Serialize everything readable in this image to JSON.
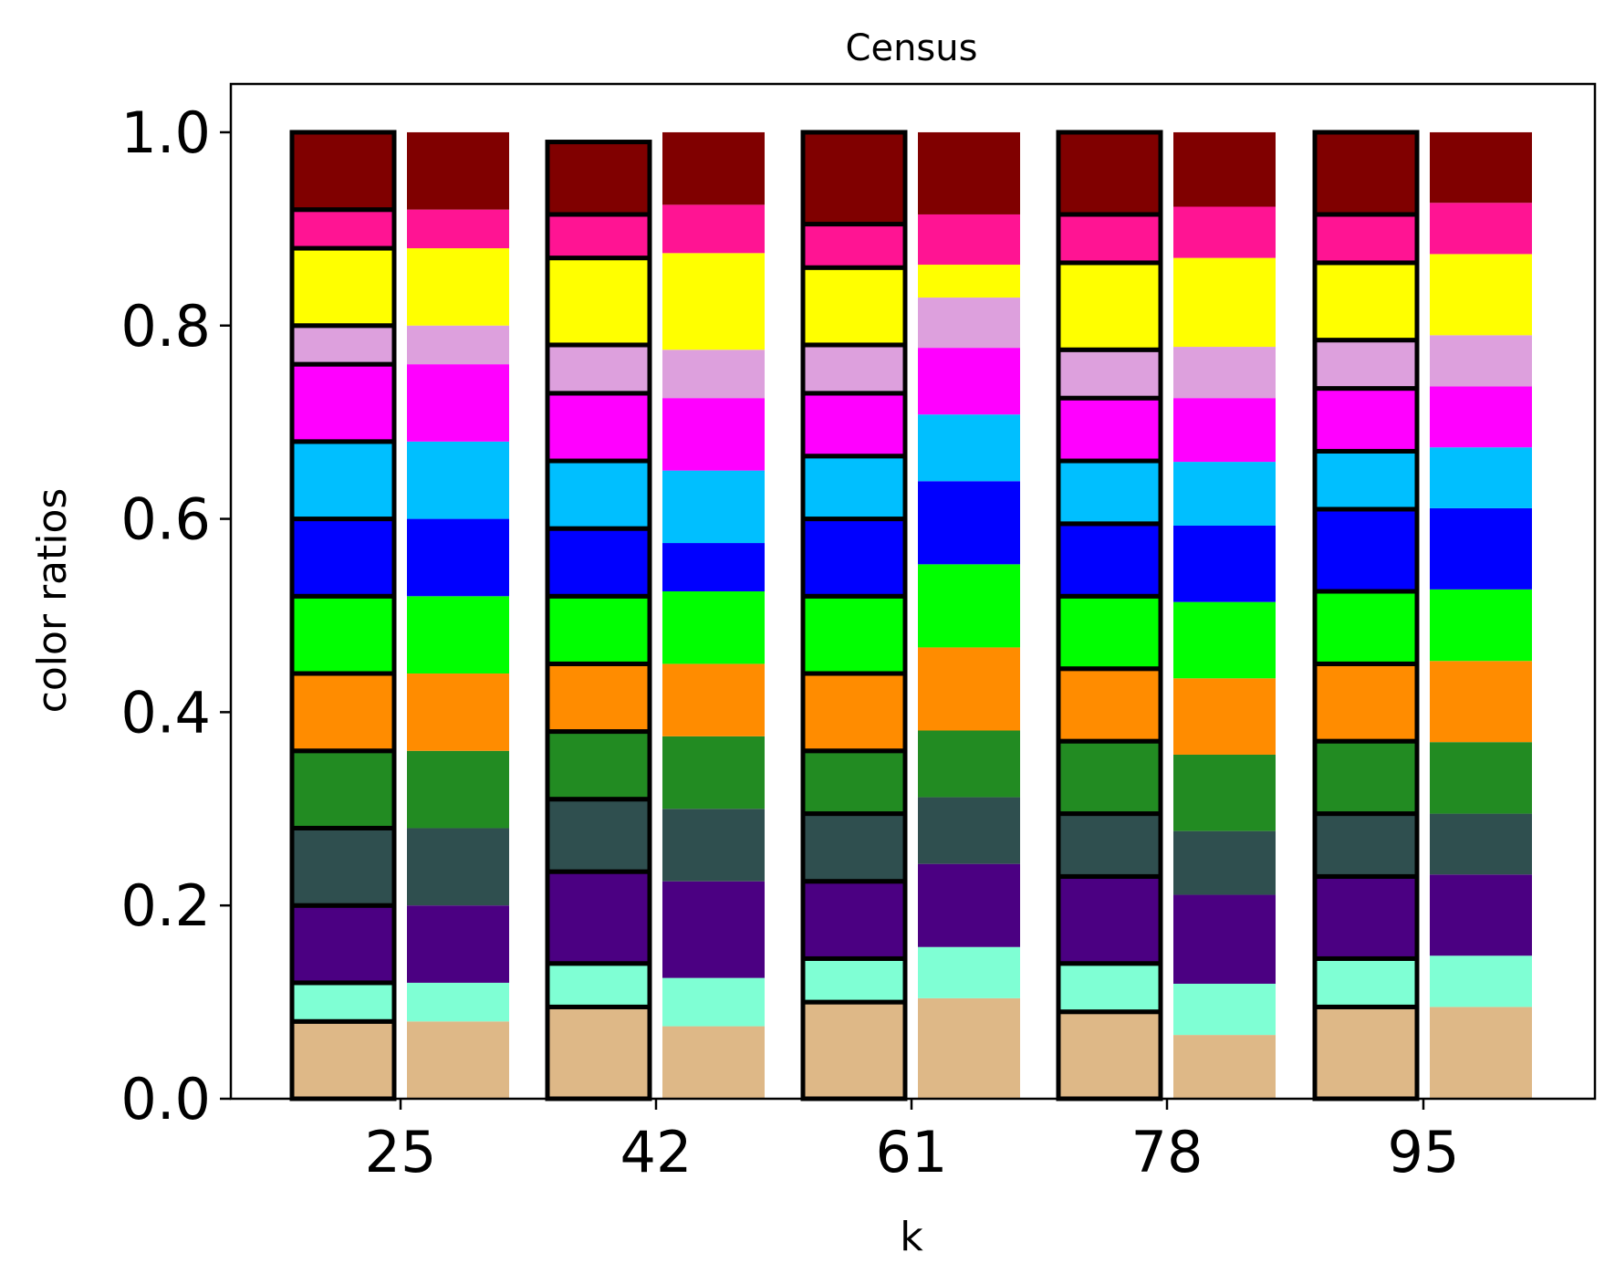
{
  "chart_data": {
    "type": "bar",
    "stacked": true,
    "title": "Census",
    "xlabel": "k",
    "ylabel": "color ratios",
    "ylim": [
      0,
      1.05
    ],
    "yticks": [
      "0.0",
      "0.2",
      "0.4",
      "0.6",
      "0.8",
      "1.0"
    ],
    "categories": [
      "25",
      "42",
      "61",
      "78",
      "95"
    ],
    "pair_note_outlined_bar_first": true,
    "segment_colors": [
      "#deb887",
      "#7fffd4",
      "#4b0082",
      "#2f4f4f",
      "#228b22",
      "#ff8c00",
      "#00ff00",
      "#0000ff",
      "#00bfff",
      "#ff00ff",
      "#dda0dd",
      "#ffff00",
      "#ff1493",
      "#800000"
    ],
    "groups": [
      {
        "k": "25",
        "outlined": [
          0.08,
          0.04,
          0.08,
          0.08,
          0.08,
          0.08,
          0.08,
          0.08,
          0.08,
          0.08,
          0.04,
          0.08,
          0.04,
          0.08
        ],
        "plain": [
          0.08,
          0.04,
          0.08,
          0.08,
          0.08,
          0.08,
          0.08,
          0.08,
          0.08,
          0.08,
          0.04,
          0.08,
          0.04,
          0.08
        ]
      },
      {
        "k": "42",
        "outlined": [
          0.095,
          0.045,
          0.095,
          0.075,
          0.07,
          0.07,
          0.07,
          0.07,
          0.07,
          0.07,
          0.05,
          0.09,
          0.045,
          0.075
        ],
        "plain": [
          0.075,
          0.05,
          0.1,
          0.075,
          0.075,
          0.075,
          0.075,
          0.05,
          0.075,
          0.075,
          0.05,
          0.1,
          0.05,
          0.075
        ]
      },
      {
        "k": "61",
        "outlined": [
          0.1,
          0.045,
          0.08,
          0.07,
          0.065,
          0.08,
          0.08,
          0.08,
          0.065,
          0.065,
          0.05,
          0.08,
          0.045,
          0.095
        ],
        "plain": [
          0.104,
          0.053,
          0.086,
          0.069,
          0.069,
          0.086,
          0.086,
          0.086,
          0.069,
          0.069,
          0.052,
          0.034,
          0.052,
          0.085
        ]
      },
      {
        "k": "78",
        "outlined": [
          0.09,
          0.05,
          0.09,
          0.065,
          0.075,
          0.075,
          0.075,
          0.075,
          0.065,
          0.065,
          0.05,
          0.09,
          0.05,
          0.085
        ],
        "plain": [
          0.066,
          0.053,
          0.092,
          0.066,
          0.079,
          0.079,
          0.079,
          0.079,
          0.066,
          0.066,
          0.053,
          0.092,
          0.053,
          0.077
        ]
      },
      {
        "k": "95",
        "outlined": [
          0.095,
          0.05,
          0.085,
          0.065,
          0.075,
          0.08,
          0.075,
          0.085,
          0.06,
          0.065,
          0.05,
          0.08,
          0.05,
          0.085
        ],
        "plain": [
          0.095,
          0.053,
          0.084,
          0.063,
          0.074,
          0.084,
          0.074,
          0.084,
          0.063,
          0.063,
          0.053,
          0.084,
          0.053,
          0.073
        ]
      }
    ]
  }
}
